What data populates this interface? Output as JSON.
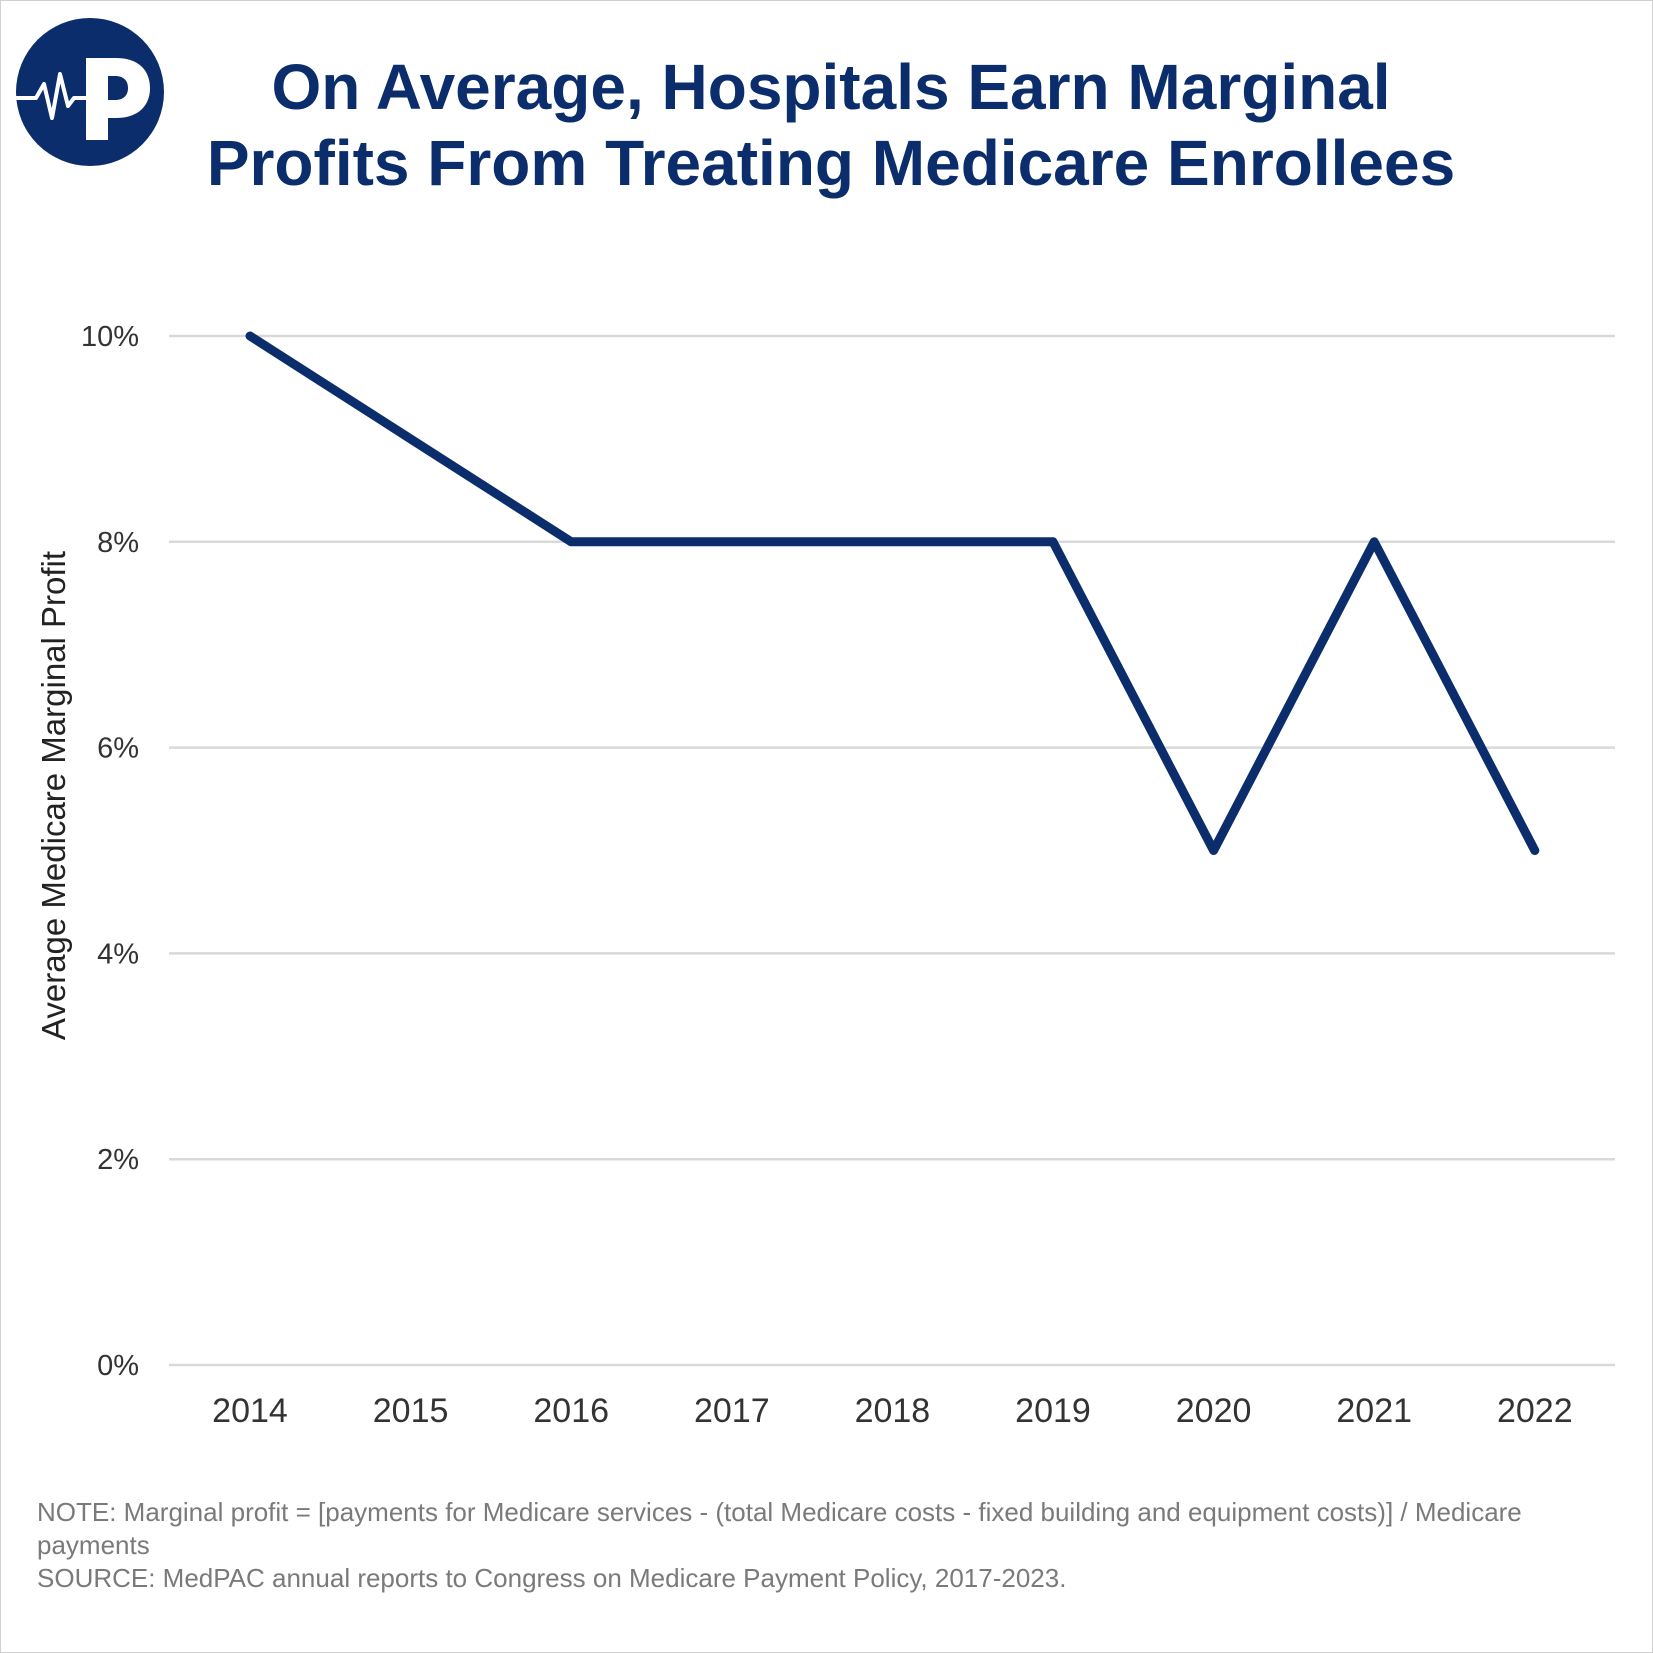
{
  "header": {
    "title_line1": "On Average, Hospitals Earn Marginal",
    "title_line2": "Profits From Treating Medicare Enrollees",
    "logo_icon": "heartbeat-p-logo-icon"
  },
  "colors": {
    "brand": "#0b2d6b",
    "line": "#0b2d6b",
    "grid": "#d9d9d9",
    "text": "#333333",
    "note": "#7a7a7a"
  },
  "chart_data": {
    "type": "line",
    "title": "On Average, Hospitals Earn Marginal Profits From Treating Medicare Enrollees",
    "xlabel": "",
    "ylabel": "Average Medicare Marginal Profit",
    "x": [
      "2014",
      "2015",
      "2016",
      "2017",
      "2018",
      "2019",
      "2020",
      "2021",
      "2022"
    ],
    "series": [
      {
        "values": [
          10,
          9,
          8,
          8,
          8,
          8,
          5,
          8,
          5
        ]
      }
    ],
    "ylim": [
      0,
      10
    ],
    "y_ticks": [
      0,
      2,
      4,
      6,
      8,
      10
    ],
    "y_tick_labels": [
      "0%",
      "2%",
      "4%",
      "6%",
      "8%",
      "10%"
    ],
    "grid": true,
    "legend": "none"
  },
  "notes": {
    "note": "NOTE: Marginal profit = [payments for Medicare services - (total Medicare costs - fixed building and equipment costs)] / Medicare payments",
    "source": "SOURCE: MedPAC annual reports to Congress on Medicare Payment Policy, 2017-2023."
  }
}
